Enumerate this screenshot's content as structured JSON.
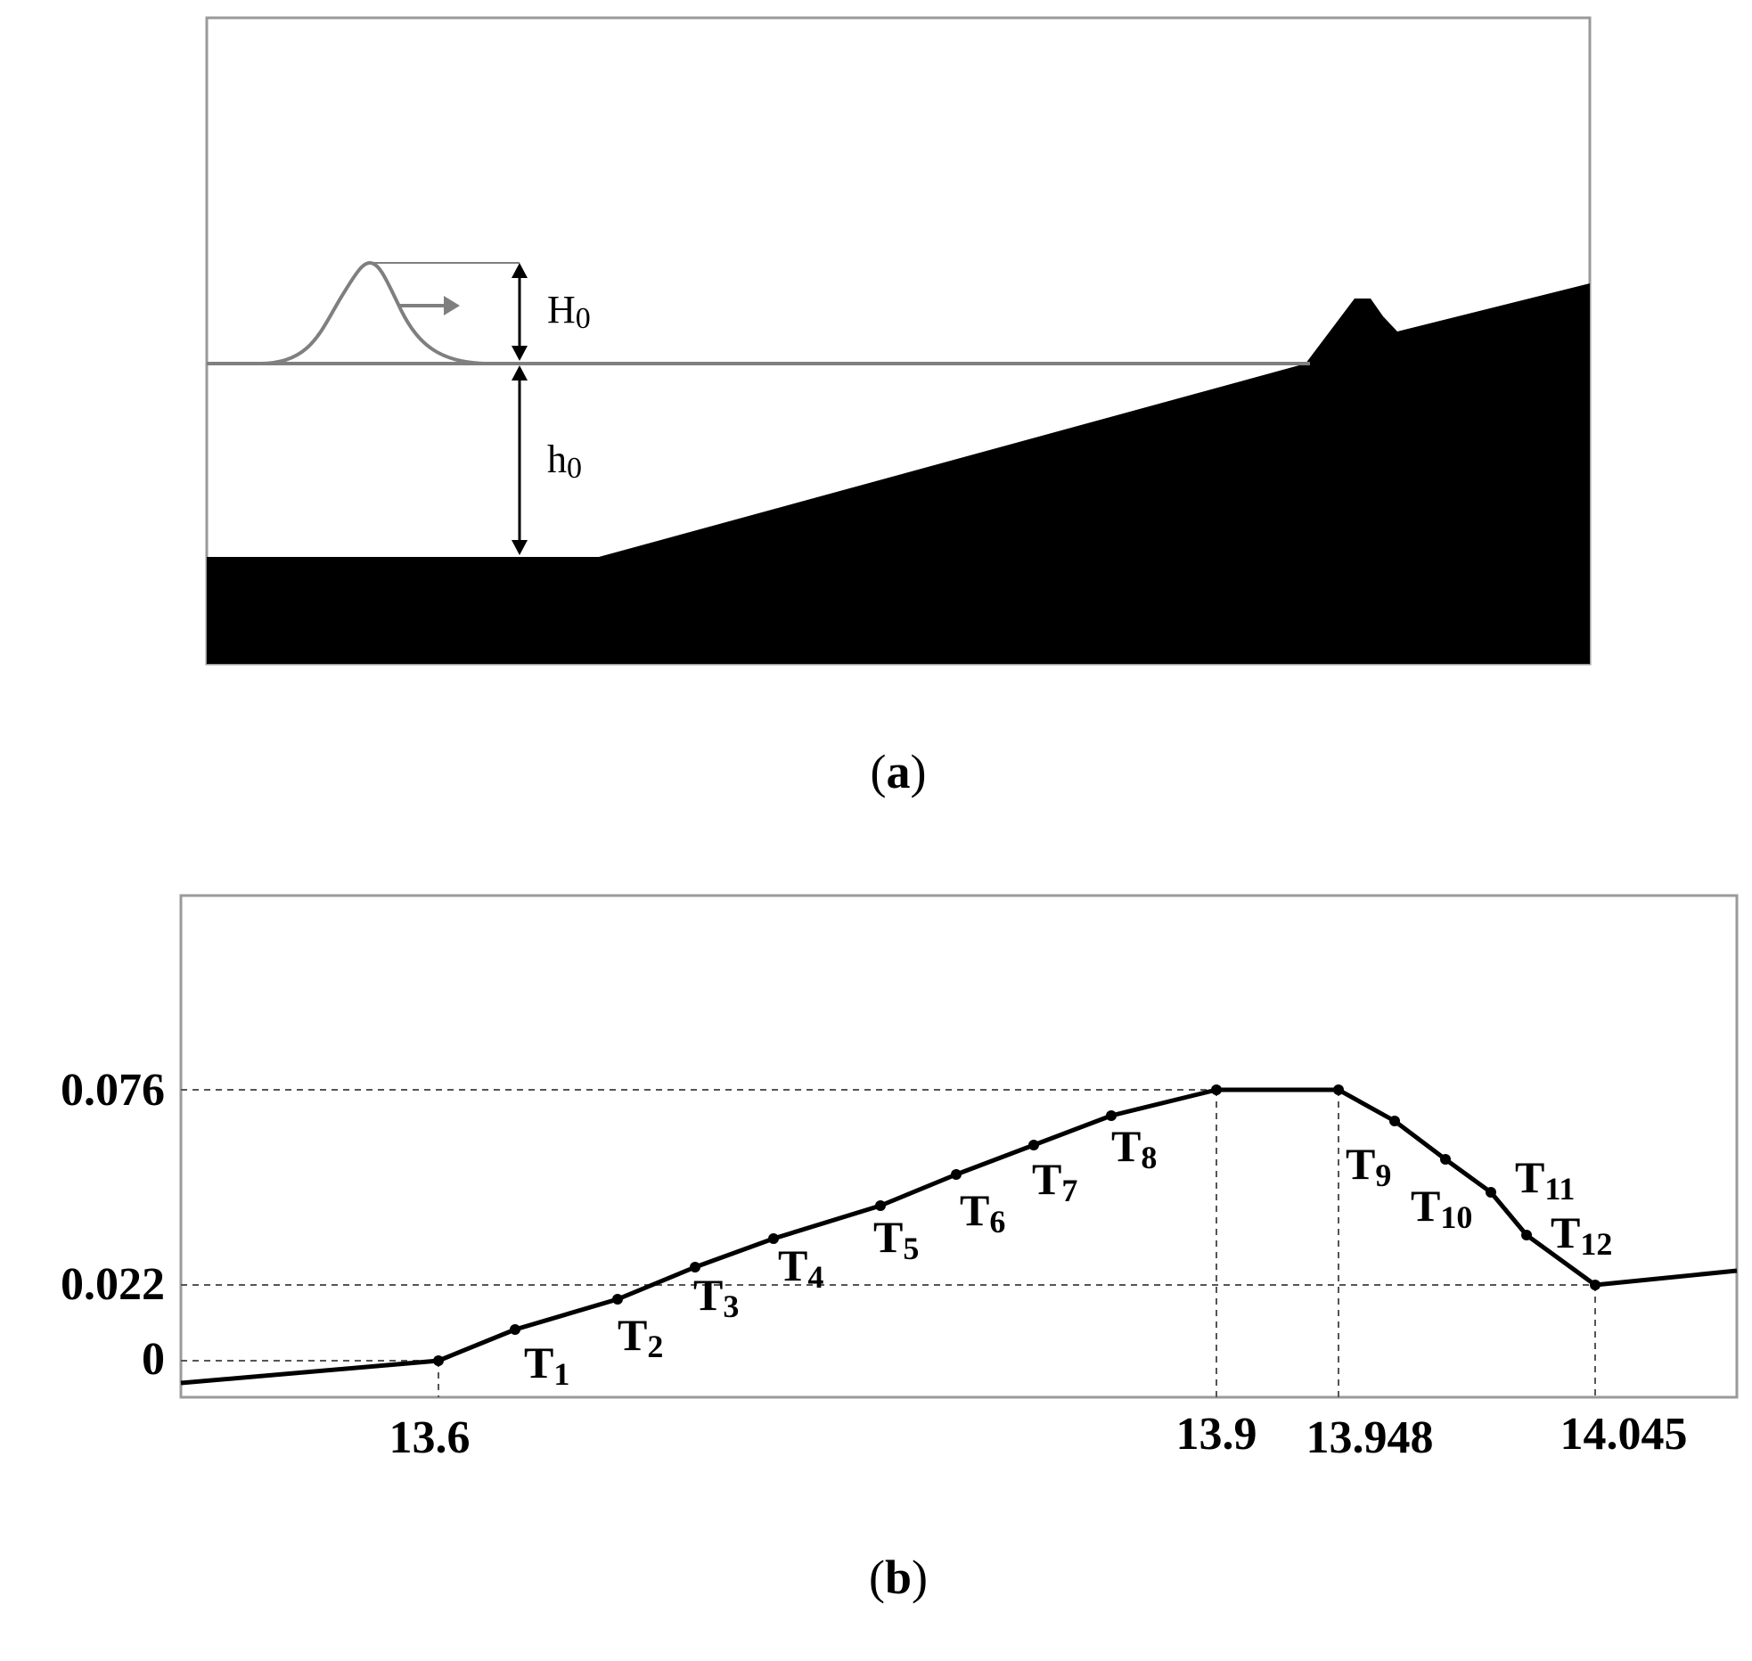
{
  "panel_a": {
    "caption_letter": "a",
    "wave_height_label_main": "H",
    "wave_height_label_sub": "0",
    "water_depth_label_main": "h",
    "water_depth_label_sub": "0"
  },
  "panel_b": {
    "caption_letter": "b",
    "y_ticks": [
      "0.076",
      "0.022",
      "0"
    ],
    "x_ticks": [
      "13.6",
      "13.9",
      "13.948",
      "14.045"
    ],
    "gauges": [
      {
        "main": "T",
        "sub": "1"
      },
      {
        "main": "T",
        "sub": "2"
      },
      {
        "main": "T",
        "sub": "3"
      },
      {
        "main": "T",
        "sub": "4"
      },
      {
        "main": "T",
        "sub": "5"
      },
      {
        "main": "T",
        "sub": "6"
      },
      {
        "main": "T",
        "sub": "7"
      },
      {
        "main": "T",
        "sub": "8"
      },
      {
        "main": "T",
        "sub": "9"
      },
      {
        "main": "T",
        "sub": "10"
      },
      {
        "main": "T",
        "sub": "11"
      },
      {
        "main": "T",
        "sub": "12"
      }
    ]
  },
  "colors": {
    "ground": "#000000",
    "water_line": "#7f7f7f",
    "frame": "#9a9a9a",
    "dashed_guides": "#555555"
  }
}
